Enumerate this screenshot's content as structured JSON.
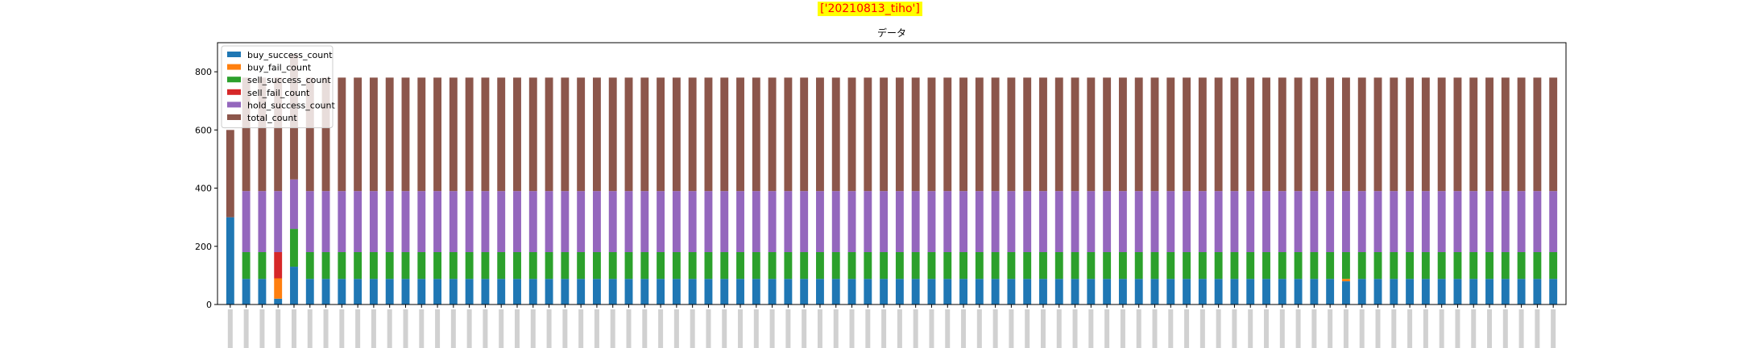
{
  "suptitle": "['20210813_tiho']",
  "chart_data": {
    "type": "bar",
    "stacked": true,
    "title": "データ",
    "xlabel": "",
    "ylabel": "",
    "ylim": [
      0,
      900
    ],
    "yticks": [
      0,
      200,
      400,
      600,
      800
    ],
    "grid": false,
    "legend_position": "top-left",
    "x_tick_labels_visible": false,
    "num_bars": 84,
    "series": [
      {
        "name": "buy_success_count",
        "color": "#1f77b4",
        "values": [
          300,
          88,
          88,
          20,
          130,
          88,
          88,
          88,
          88,
          88,
          88,
          88,
          88,
          88,
          88,
          88,
          88,
          88,
          88,
          88,
          88,
          88,
          88,
          88,
          88,
          88,
          88,
          88,
          88,
          88,
          88,
          88,
          88,
          88,
          88,
          88,
          88,
          88,
          88,
          88,
          88,
          88,
          88,
          88,
          88,
          88,
          88,
          88,
          88,
          88,
          88,
          88,
          88,
          88,
          88,
          88,
          88,
          88,
          88,
          88,
          88,
          88,
          88,
          88,
          88,
          88,
          88,
          88,
          88,
          88,
          80,
          88,
          88,
          88,
          88,
          88,
          88,
          88,
          88,
          88,
          88,
          88,
          88,
          88
        ]
      },
      {
        "name": "buy_fail_count",
        "color": "#ff7f0e",
        "values": [
          0,
          0,
          0,
          70,
          0,
          0,
          0,
          0,
          0,
          0,
          0,
          0,
          0,
          0,
          0,
          0,
          0,
          0,
          0,
          0,
          0,
          0,
          0,
          0,
          0,
          0,
          0,
          0,
          0,
          0,
          0,
          0,
          0,
          0,
          0,
          0,
          0,
          0,
          0,
          0,
          0,
          0,
          0,
          0,
          0,
          0,
          0,
          0,
          0,
          0,
          0,
          0,
          0,
          0,
          0,
          0,
          0,
          0,
          0,
          0,
          0,
          0,
          0,
          0,
          0,
          0,
          0,
          0,
          0,
          0,
          8,
          0,
          0,
          0,
          0,
          0,
          0,
          0,
          0,
          0,
          0,
          0,
          0,
          0
        ]
      },
      {
        "name": "sell_success_count",
        "color": "#2ca02c",
        "values": [
          0,
          92,
          92,
          0,
          130,
          92,
          92,
          92,
          92,
          92,
          92,
          92,
          92,
          92,
          92,
          92,
          92,
          92,
          92,
          92,
          92,
          92,
          92,
          92,
          92,
          92,
          92,
          92,
          92,
          92,
          92,
          92,
          92,
          92,
          92,
          92,
          92,
          92,
          92,
          92,
          92,
          92,
          92,
          92,
          92,
          92,
          92,
          92,
          92,
          92,
          92,
          92,
          92,
          92,
          92,
          92,
          92,
          92,
          92,
          92,
          92,
          92,
          92,
          92,
          92,
          92,
          92,
          92,
          92,
          92,
          92,
          92,
          92,
          92,
          92,
          92,
          92,
          92,
          92,
          92,
          92,
          92,
          92,
          92
        ]
      },
      {
        "name": "sell_fail_count",
        "color": "#d62728",
        "values": [
          0,
          0,
          0,
          90,
          0,
          0,
          0,
          0,
          0,
          0,
          0,
          0,
          0,
          0,
          0,
          0,
          0,
          0,
          0,
          0,
          0,
          0,
          0,
          0,
          0,
          0,
          0,
          0,
          0,
          0,
          0,
          0,
          0,
          0,
          0,
          0,
          0,
          0,
          0,
          0,
          0,
          0,
          0,
          0,
          0,
          0,
          0,
          0,
          0,
          0,
          0,
          0,
          0,
          0,
          0,
          0,
          0,
          0,
          0,
          0,
          0,
          0,
          0,
          0,
          0,
          0,
          0,
          0,
          0,
          0,
          0,
          0,
          0,
          0,
          0,
          0,
          0,
          0,
          0,
          0,
          0,
          0,
          0,
          0
        ]
      },
      {
        "name": "hold_success_count",
        "color": "#9467bd",
        "values": [
          0,
          210,
          210,
          210,
          170,
          210,
          210,
          210,
          210,
          210,
          210,
          210,
          210,
          210,
          210,
          210,
          210,
          210,
          210,
          210,
          210,
          210,
          210,
          210,
          210,
          210,
          210,
          210,
          210,
          210,
          210,
          210,
          210,
          210,
          210,
          210,
          210,
          210,
          210,
          210,
          210,
          210,
          210,
          210,
          210,
          210,
          210,
          210,
          210,
          210,
          210,
          210,
          210,
          210,
          210,
          210,
          210,
          210,
          210,
          210,
          210,
          210,
          210,
          210,
          210,
          210,
          210,
          210,
          210,
          210,
          210,
          210,
          210,
          210,
          210,
          210,
          210,
          210,
          210,
          210,
          210,
          210,
          210,
          210
        ]
      },
      {
        "name": "total_count",
        "color": "#8c564b",
        "values": [
          300,
          390,
          390,
          390,
          430,
          390,
          390,
          390,
          390,
          390,
          390,
          390,
          390,
          390,
          390,
          390,
          390,
          390,
          390,
          390,
          390,
          390,
          390,
          390,
          390,
          390,
          390,
          390,
          390,
          390,
          390,
          390,
          390,
          390,
          390,
          390,
          390,
          390,
          390,
          390,
          390,
          390,
          390,
          390,
          390,
          390,
          390,
          390,
          390,
          390,
          390,
          390,
          390,
          390,
          390,
          390,
          390,
          390,
          390,
          390,
          390,
          390,
          390,
          390,
          390,
          390,
          390,
          390,
          390,
          390,
          390,
          390,
          390,
          390,
          390,
          390,
          390,
          390,
          390,
          390,
          390,
          390,
          390,
          390
        ]
      }
    ]
  }
}
